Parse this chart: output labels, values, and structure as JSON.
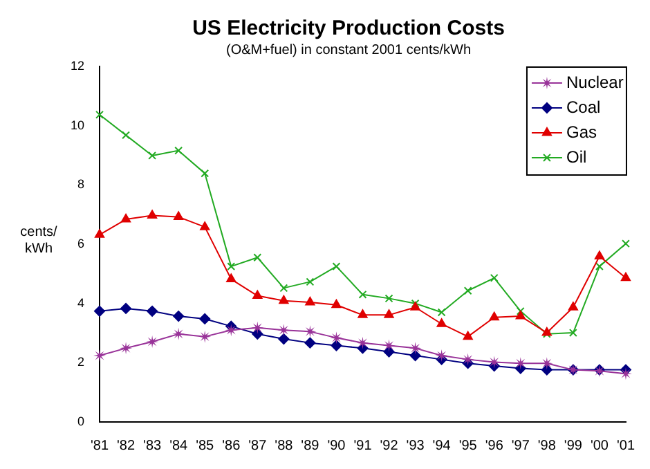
{
  "chart_data": {
    "type": "line",
    "title": "US Electricity Production Costs",
    "subtitle": "(O&M+fuel) in constant 2001 cents/kWh",
    "ylabel": "cents/ kWh",
    "categories": [
      "'81",
      "'82",
      "'83",
      "'84",
      "'85",
      "'86",
      "'87",
      "'88",
      "'89",
      "'90",
      "'91",
      "'92",
      "'93",
      "'94",
      "'95",
      "'96",
      "'97",
      "'98",
      "'99",
      "'00",
      "'01"
    ],
    "series": [
      {
        "name": "Nuclear",
        "color": "#993399",
        "marker": "star",
        "values": [
          2.24,
          2.49,
          2.71,
          2.97,
          2.88,
          3.1,
          3.18,
          3.1,
          3.05,
          2.84,
          2.67,
          2.58,
          2.49,
          2.24,
          2.11,
          2.02,
          1.98,
          1.98,
          1.76,
          1.72,
          1.63
        ]
      },
      {
        "name": "Coal",
        "color": "#000080",
        "marker": "diamond",
        "values": [
          3.74,
          3.83,
          3.74,
          3.57,
          3.48,
          3.23,
          2.97,
          2.8,
          2.67,
          2.58,
          2.49,
          2.37,
          2.24,
          2.11,
          1.98,
          1.89,
          1.81,
          1.76,
          1.76,
          1.76,
          1.76
        ]
      },
      {
        "name": "Gas",
        "color": "#e00000",
        "marker": "triangle",
        "values": [
          6.32,
          6.84,
          6.97,
          6.92,
          6.58,
          4.82,
          4.26,
          4.09,
          4.04,
          3.95,
          3.61,
          3.61,
          3.87,
          3.31,
          2.88,
          3.53,
          3.57,
          3.01,
          3.87,
          5.59,
          4.86
        ]
      },
      {
        "name": "Oil",
        "color": "#22aa22",
        "marker": "cross",
        "values": [
          10.37,
          9.68,
          8.99,
          9.16,
          8.39,
          5.25,
          5.55,
          4.52,
          4.73,
          5.25,
          4.3,
          4.17,
          4.0,
          3.7,
          4.43,
          4.86,
          3.74,
          2.97,
          3.01,
          5.25,
          6.02
        ]
      }
    ],
    "ylim": [
      0,
      12
    ],
    "yticks": [
      0,
      2,
      4,
      6,
      8,
      10,
      12
    ],
    "grid": false,
    "legend": "top right",
    "line_style": "solid"
  }
}
